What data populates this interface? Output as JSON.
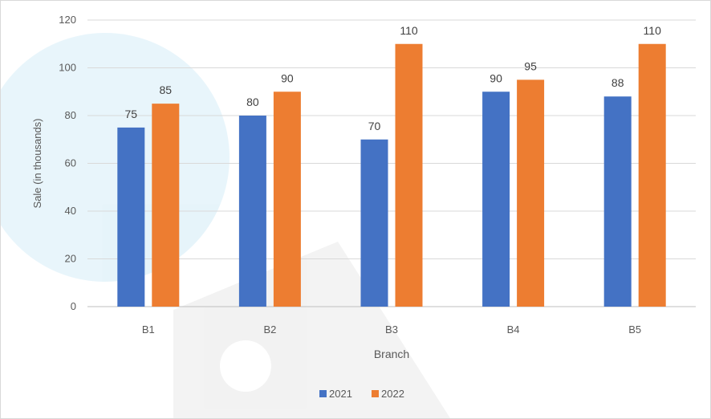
{
  "chart_data": {
    "type": "bar",
    "categories": [
      "B1",
      "B2",
      "B3",
      "B4",
      "B5"
    ],
    "series": [
      {
        "name": "2021",
        "color": "#4472C4",
        "values": [
          75,
          80,
          70,
          90,
          88
        ]
      },
      {
        "name": "2022",
        "color": "#ED7D31",
        "values": [
          85,
          90,
          110,
          95,
          110
        ]
      }
    ],
    "title": "",
    "xlabel": "Branch",
    "ylabel": "Sale (in thousands)",
    "ylim": [
      0,
      120
    ],
    "yticks": [
      0,
      20,
      40,
      60,
      80,
      100,
      120
    ],
    "grid": true,
    "legend_position": "bottom",
    "data_labels": true
  }
}
